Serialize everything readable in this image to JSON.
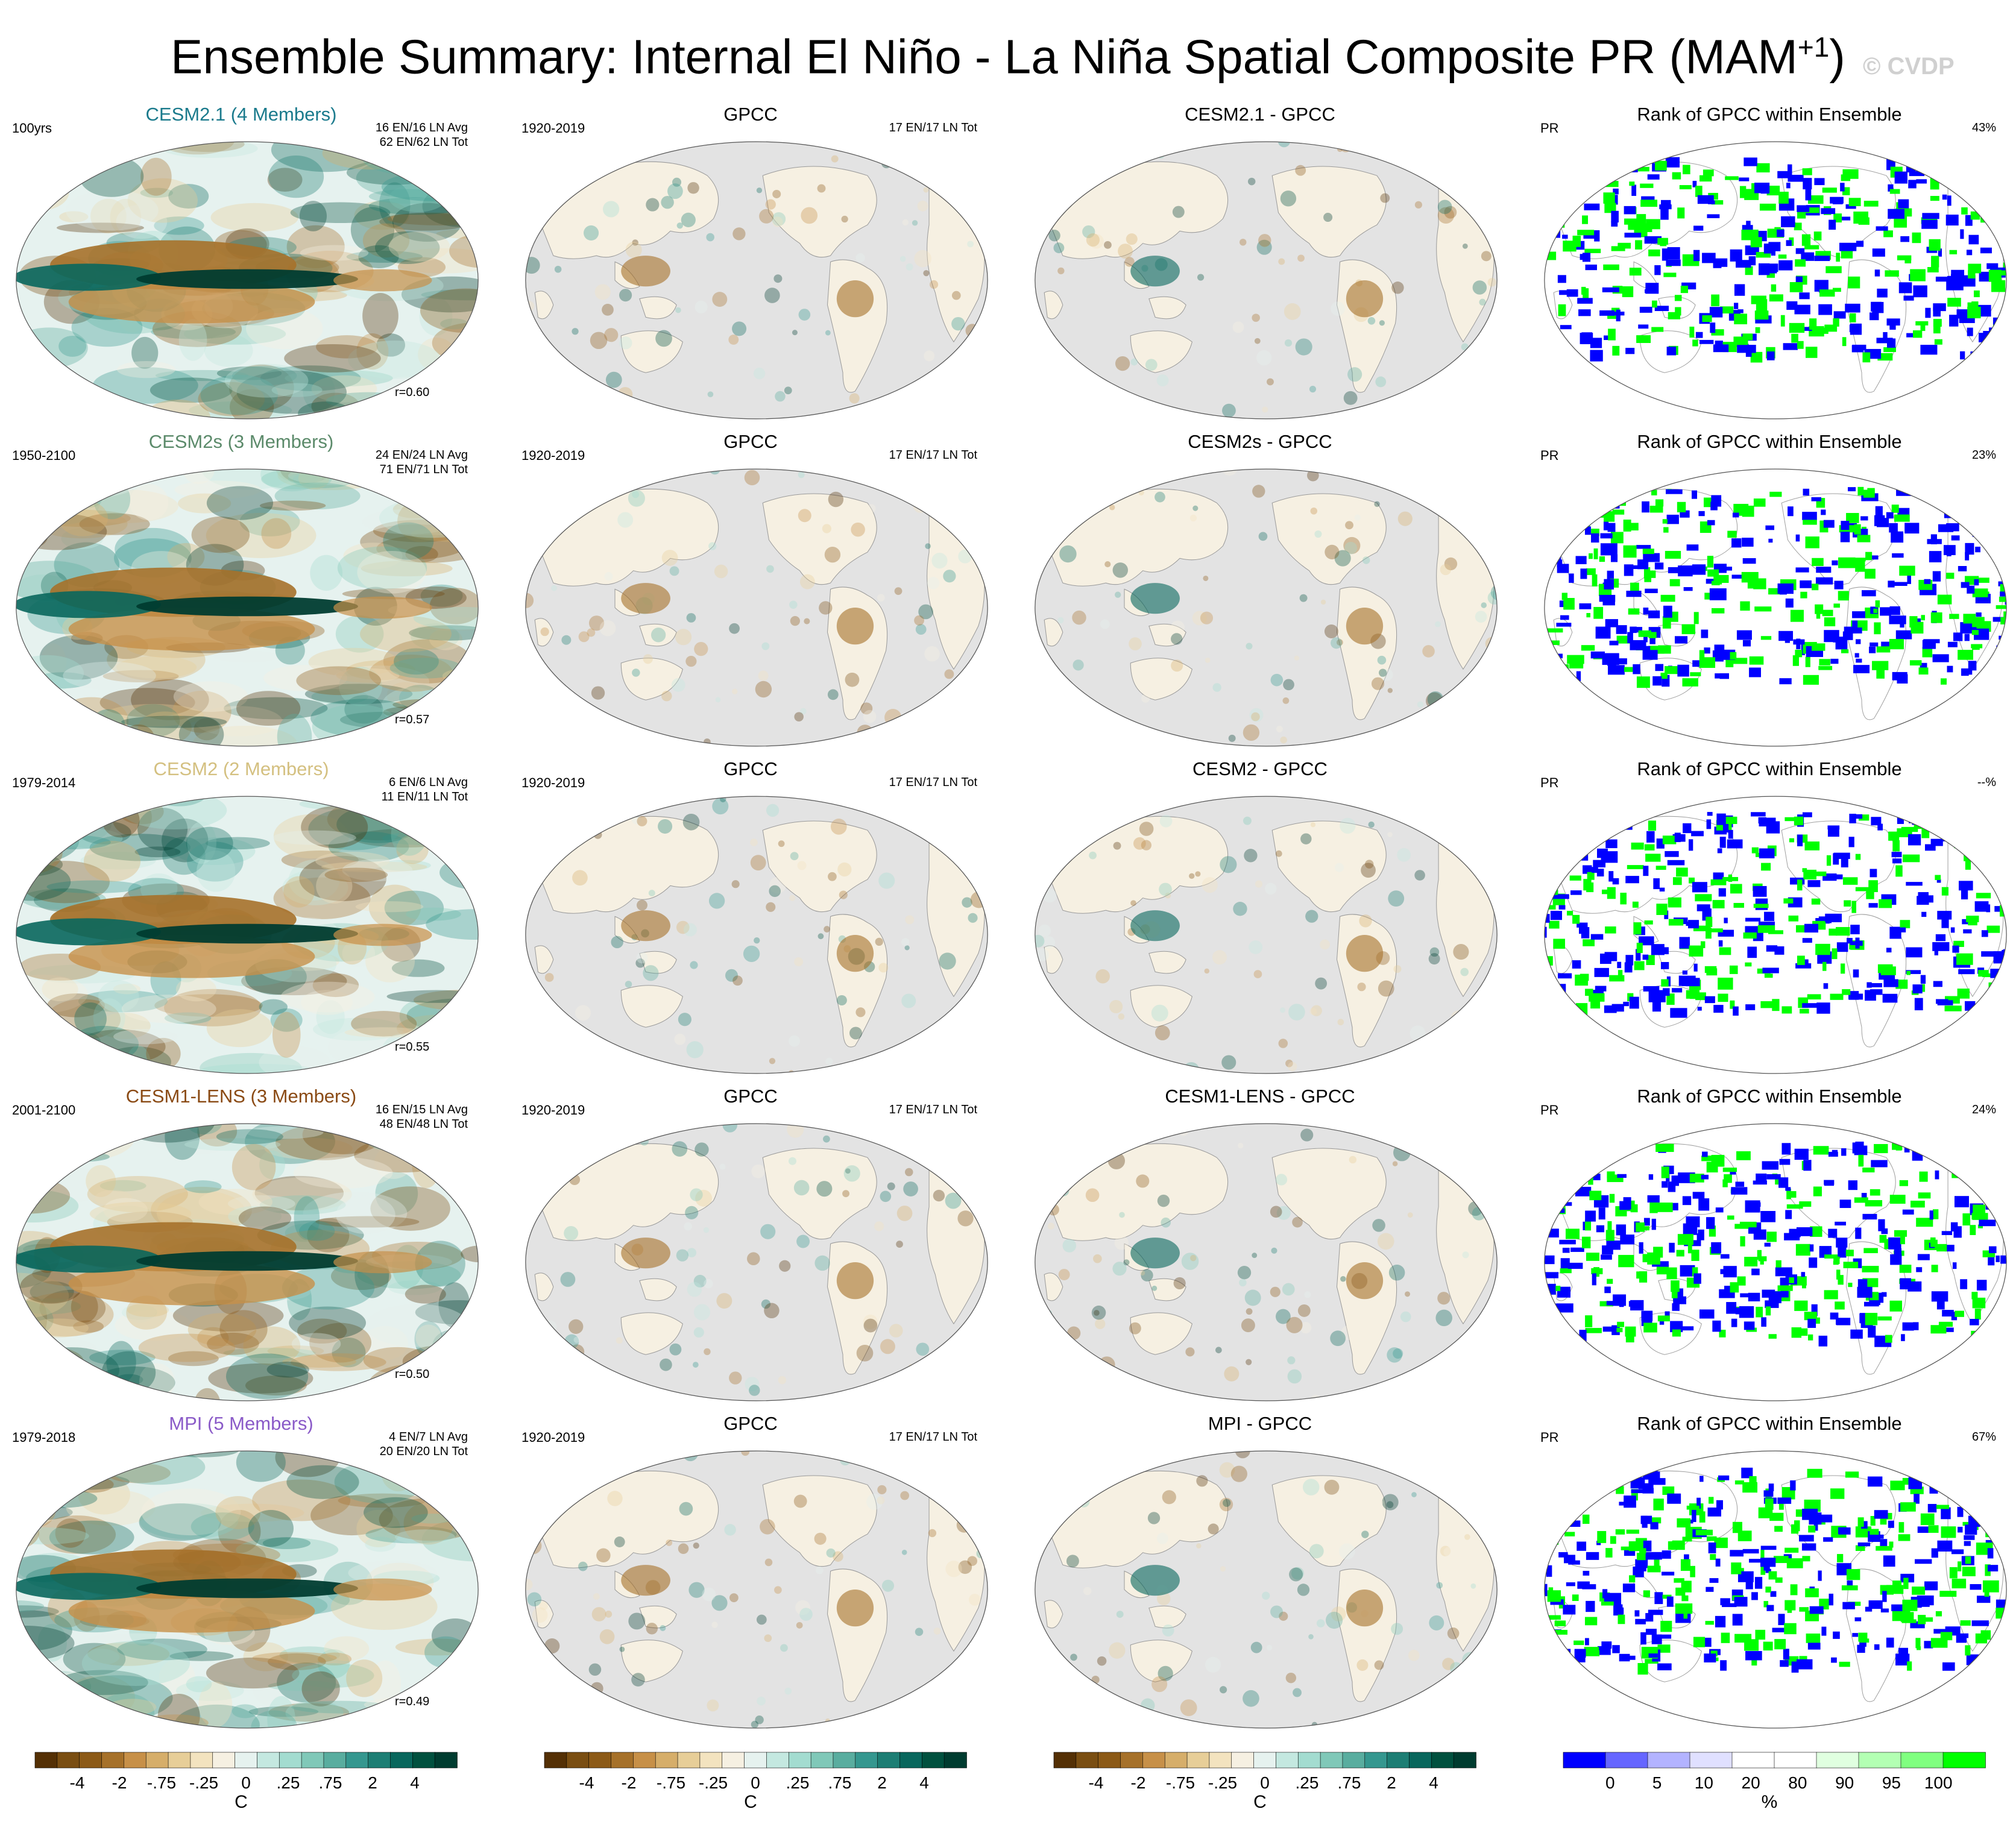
{
  "title": {
    "main": "Ensemble Summary: Internal El Niño - La Niña Spatial Composite PR (MAM",
    "sup": "+1",
    "close": ")"
  },
  "watermark": "© CVDP",
  "colors": {
    "model_titles": [
      "#1a7a8c",
      "#5b8a6a",
      "#d4c080",
      "#8a4a14",
      "#8a5ac8"
    ],
    "diverging": [
      "#543005",
      "#7a4e12",
      "#8c5a17",
      "#a6712a",
      "#c79048",
      "#d6ae6a",
      "#e7ce98",
      "#f3e3bf",
      "#f6f0e2",
      "#e6f2ef",
      "#c4e8e0",
      "#a3dcd0",
      "#80c8b8",
      "#59ad9f",
      "#35978f",
      "#1d7e74",
      "#09675d",
      "#01513f",
      "#003c30"
    ],
    "rank": [
      "#0000ff",
      "#6666ff",
      "#b3b3ff",
      "#e0e0ff",
      "#ffffff",
      "#ffffff",
      "#e0ffe0",
      "#b3ffb3",
      "#80ff80",
      "#00ff00"
    ],
    "land_gray": "#e3e3e3"
  },
  "chart_data": {
    "type": "map-panels",
    "rows": [
      {
        "model": "CESM2.1 (4 Members)",
        "period": "100yrs",
        "counts": [
          "16 EN/16 LN Avg",
          "62 EN/62 LN Tot"
        ],
        "r": "r=0.60",
        "obs_title": "GPCC",
        "obs_period": "1920-2019",
        "obs_counts": "17 EN/17 LN Tot",
        "diff_title": "CESM2.1 - GPCC",
        "rank_title": "Rank of GPCC within Ensemble",
        "rank_var": "PR",
        "rank_pct": "43%"
      },
      {
        "model": "CESM2s (3 Members)",
        "period": "1950-2100",
        "counts": [
          "24 EN/24 LN Avg",
          "71 EN/71 LN Tot"
        ],
        "r": "r=0.57",
        "obs_title": "GPCC",
        "obs_period": "1920-2019",
        "obs_counts": "17 EN/17 LN Tot",
        "diff_title": "CESM2s - GPCC",
        "rank_title": "Rank of GPCC within Ensemble",
        "rank_var": "PR",
        "rank_pct": "23%"
      },
      {
        "model": "CESM2 (2 Members)",
        "period": "1979-2014",
        "counts": [
          "6 EN/6 LN Avg",
          "11 EN/11 LN Tot"
        ],
        "r": "r=0.55",
        "obs_title": "GPCC",
        "obs_period": "1920-2019",
        "obs_counts": "17 EN/17 LN Tot",
        "diff_title": "CESM2 - GPCC",
        "rank_title": "Rank of GPCC within Ensemble",
        "rank_var": "PR",
        "rank_pct": "--%"
      },
      {
        "model": "CESM1-LENS (3 Members)",
        "period": "2001-2100",
        "counts": [
          "16 EN/15 LN Avg",
          "48 EN/48 LN Tot"
        ],
        "r": "r=0.50",
        "obs_title": "GPCC",
        "obs_period": "1920-2019",
        "obs_counts": "17 EN/17 LN Tot",
        "diff_title": "CESM1-LENS - GPCC",
        "rank_title": "Rank of GPCC within Ensemble",
        "rank_var": "PR",
        "rank_pct": "24%"
      },
      {
        "model": "MPI (5 Members)",
        "period": "1979-2018",
        "counts": [
          "4 EN/7 LN Avg",
          "20 EN/20 LN Tot"
        ],
        "r": "r=0.49",
        "obs_title": "GPCC",
        "obs_period": "1920-2019",
        "obs_counts": "17 EN/17 LN Tot",
        "diff_title": "MPI - GPCC",
        "rank_title": "Rank of GPCC within Ensemble",
        "rank_var": "PR",
        "rank_pct": "67%"
      }
    ],
    "diverging_ticks": [
      "-4",
      "-2",
      "-.75",
      "-.25",
      "0",
      ".25",
      ".75",
      "2",
      "4"
    ],
    "diverging_unit": "C",
    "rank_ticks": [
      "0",
      "5",
      "10",
      "20",
      "80",
      "90",
      "95",
      "100"
    ],
    "rank_unit": "%"
  }
}
